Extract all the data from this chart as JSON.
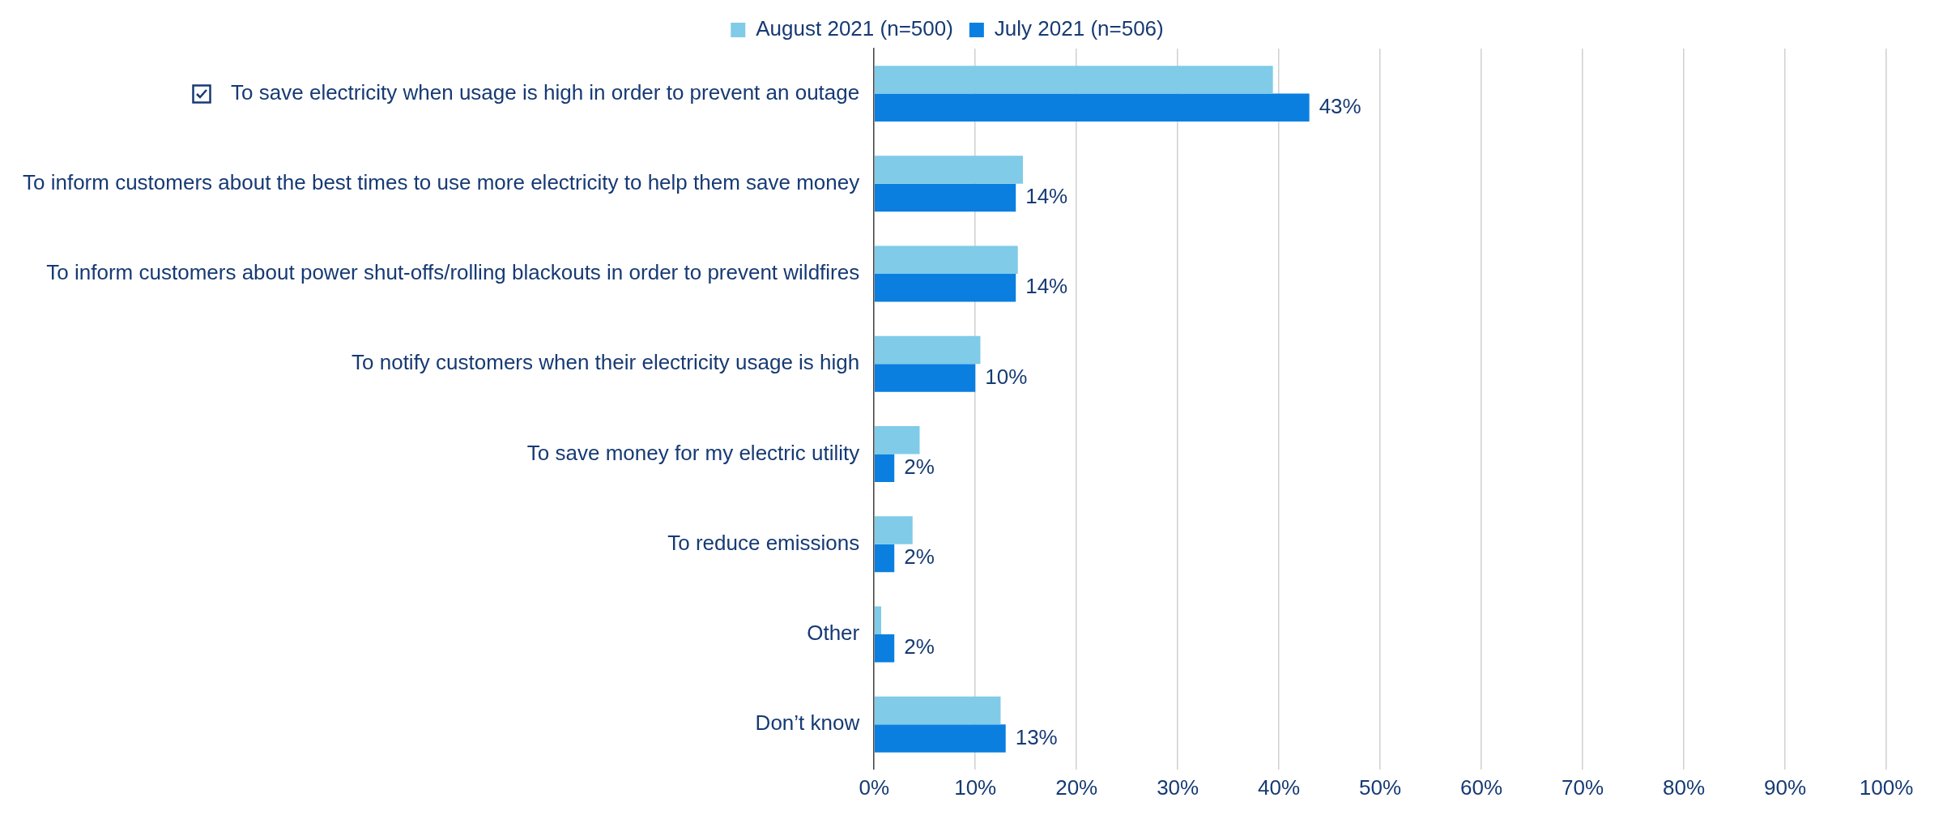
{
  "chart_data": {
    "type": "bar",
    "orientation": "horizontal",
    "categories": [
      "To save electricity when usage is high in order to prevent an outage",
      "To inform customers about the best times to use more electricity to help them save money",
      "To inform customers about power shut-offs/rolling blackouts in order to prevent wildfires",
      "To notify customers when their electricity usage is high",
      "To save money for my electric utility",
      "To reduce emissions",
      "Other",
      "Don’t know"
    ],
    "series": [
      {
        "name": "August 2021 (n=500)",
        "color": "#7fcbe8",
        "values": [
          39.4,
          14.7,
          14.2,
          10.5,
          4.5,
          3.8,
          0.7,
          12.5
        ]
      },
      {
        "name": "July 2021 (n=506)",
        "color": "#0a7fe0",
        "values": [
          43,
          14,
          14,
          10,
          2,
          2,
          2,
          13
        ],
        "value_labels": [
          "43%",
          "14%",
          "14%",
          "10%",
          "2%",
          "2%",
          "2%",
          "13%"
        ]
      }
    ],
    "xlim": [
      0,
      100
    ],
    "xticks": [
      {
        "value": 0,
        "label": "0%"
      },
      {
        "value": 10,
        "label": "10%"
      },
      {
        "value": 20,
        "label": "20%"
      },
      {
        "value": 30,
        "label": "30%"
      },
      {
        "value": 40,
        "label": "40%"
      },
      {
        "value": 50,
        "label": "50%"
      },
      {
        "value": 60,
        "label": "60%"
      },
      {
        "value": 70,
        "label": "70%"
      },
      {
        "value": 80,
        "label": "80%"
      },
      {
        "value": 90,
        "label": "90%"
      },
      {
        "value": 100,
        "label": "100%"
      }
    ],
    "grid": "x",
    "legend": "top"
  }
}
